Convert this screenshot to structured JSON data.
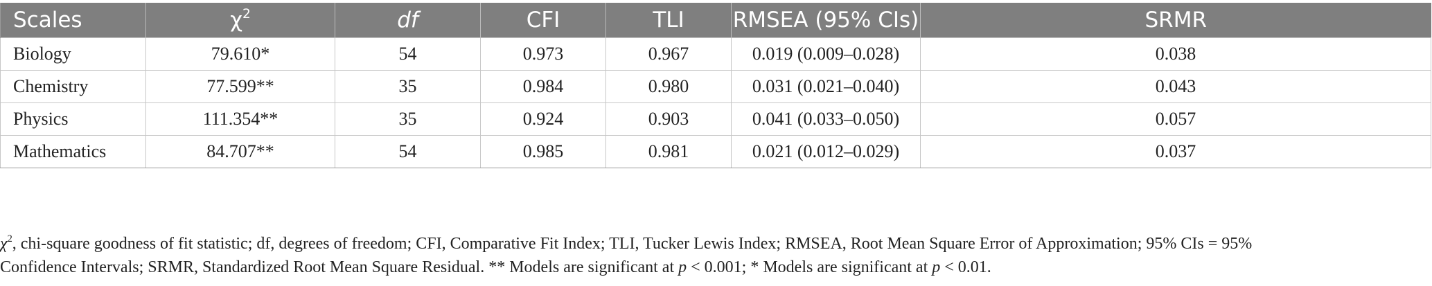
{
  "table": {
    "headers": {
      "scales": "Scales",
      "chi_base": "χ",
      "chi_sup": "2",
      "df": "df",
      "cfi": "CFI",
      "tli": "TLI",
      "rmsea": "RMSEA (95% CIs)",
      "srmr": "SRMR"
    },
    "rows": [
      {
        "scale": "Biology",
        "chi2": "79.610*",
        "df": "54",
        "cfi": "0.973",
        "tli": "0.967",
        "rmsea": "0.019 (0.009–0.028)",
        "srmr": "0.038"
      },
      {
        "scale": "Chemistry",
        "chi2": "77.599**",
        "df": "35",
        "cfi": "0.984",
        "tli": "0.980",
        "rmsea": "0.031 (0.021–0.040)",
        "srmr": "0.043"
      },
      {
        "scale": "Physics",
        "chi2": "111.354**",
        "df": "35",
        "cfi": "0.924",
        "tli": "0.903",
        "rmsea": "0.041 (0.033–0.050)",
        "srmr": "0.057"
      },
      {
        "scale": "Mathematics",
        "chi2": "84.707**",
        "df": "54",
        "cfi": "0.985",
        "tli": "0.981",
        "rmsea": "0.021 (0.012–0.029)",
        "srmr": "0.037"
      }
    ]
  },
  "note": {
    "chi_symbol": "χ",
    "chi_sup": "2",
    "line1_text": ", chi-square goodness of fit statistic; df, degrees of freedom; CFI, Comparative Fit Index; TLI, Tucker Lewis Index; RMSEA, Root Mean Square Error of Approximation; 95% CIs = 95%",
    "line2_a": "Confidence Intervals; SRMR, Standardized Root Mean Square Residual. ** Models are significant at ",
    "p1": "p",
    "line2_b": " < 0.001; * Models are significant at ",
    "p2": "p",
    "line2_c": " < 0.01."
  }
}
